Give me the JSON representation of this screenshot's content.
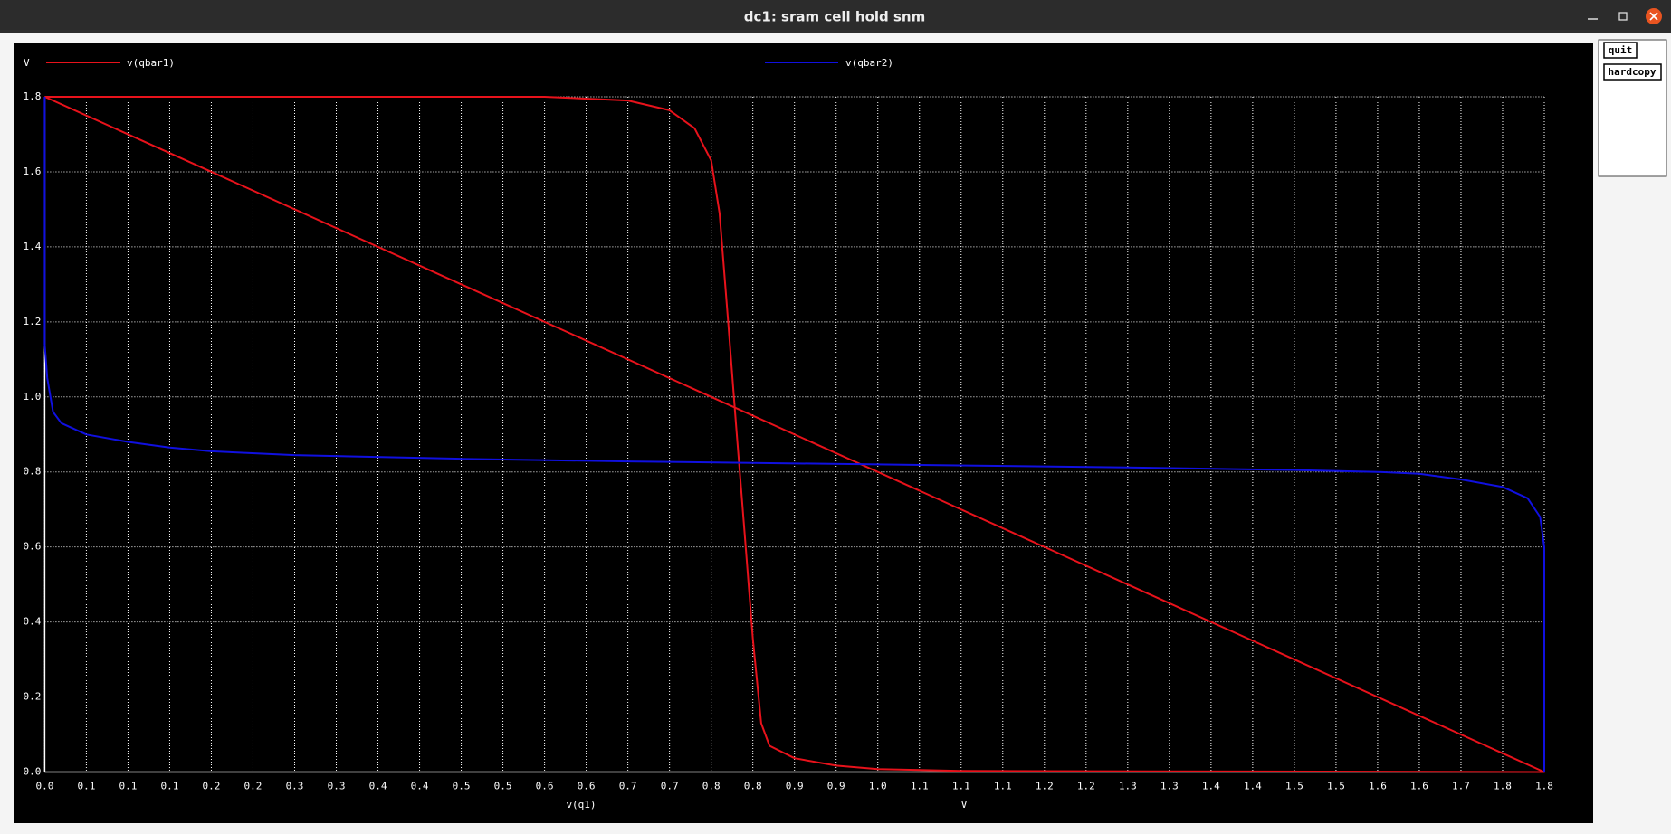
{
  "window": {
    "title": "dc1: sram cell hold snm"
  },
  "buttons": [
    "quit",
    "hardcopy"
  ],
  "chart_data": {
    "type": "line",
    "y_unit": "V",
    "xlabel": "v(q1)",
    "x_unit": "V",
    "grid": true,
    "xlim": [
      0,
      1.8
    ],
    "ylim": [
      0,
      1.8
    ],
    "xticks": [
      {
        "value": 0,
        "label": "0.0"
      },
      {
        "value": 0.05,
        "label": "0.1"
      },
      0.1,
      {
        "value": 0.15,
        "label": "0.1"
      },
      0.2,
      {
        "value": 0.25,
        "label": "0.2"
      },
      0.3,
      {
        "value": 0.35,
        "label": "0.3"
      },
      0.4,
      {
        "value": 0.45,
        "label": "0.4"
      },
      0.5,
      {
        "value": 0.55,
        "label": "0.5"
      },
      0.6,
      {
        "value": 0.65,
        "label": "0.6"
      },
      0.7,
      {
        "value": 0.75,
        "label": "0.7"
      },
      0.8,
      {
        "value": 0.85,
        "label": "0.8"
      },
      0.9,
      {
        "value": 0.95,
        "label": "0.9"
      },
      {
        "value": 1,
        "label": "1.0"
      },
      {
        "value": 1.05,
        "label": "1.1"
      },
      1.1,
      {
        "value": 1.15,
        "label": "1.1"
      },
      1.2,
      {
        "value": 1.25,
        "label": "1.2"
      },
      1.3,
      {
        "value": 1.35,
        "label": "1.3"
      },
      1.4,
      {
        "value": 1.45,
        "label": "1.4"
      },
      1.5,
      {
        "value": 1.55,
        "label": "1.5"
      },
      1.6,
      {
        "value": 1.65,
        "label": "1.6"
      },
      1.7,
      {
        "value": 1.75,
        "label": "1.8"
      },
      1.8
    ],
    "yticks": [
      {
        "value": 0,
        "label": "0.0"
      },
      0.2,
      0.4,
      0.6,
      0.8,
      {
        "value": 1,
        "label": "1.0"
      },
      1.2,
      1.4,
      1.6,
      1.8
    ],
    "series": [
      {
        "name": "v(qbar1)",
        "color": "#e8121b",
        "x": [
          0,
          0.5,
          0.6,
          0.7,
          0.75,
          0.78,
          0.8,
          0.81,
          0.82,
          0.83,
          0.84,
          0.85,
          0.86,
          0.87,
          0.9,
          0.95,
          1.0,
          1.1,
          1.8,
          0
        ],
        "values": [
          1.8,
          1.8,
          1.8,
          1.79,
          1.764,
          1.716,
          1.63,
          1.49,
          1.21,
          0.92,
          0.64,
          0.355,
          0.13,
          0.07,
          0.037,
          0.017,
          0.008,
          0.003,
          0,
          1.8
        ]
      },
      {
        "name": "v(qbar2)",
        "color": "#1010e0",
        "x": [
          0,
          0,
          0.003,
          0.01,
          0.02,
          0.05,
          0.1,
          0.15,
          0.2,
          0.3,
          0.5,
          0.7,
          1.0,
          1.3,
          1.5,
          1.6,
          1.65,
          1.7,
          1.75,
          1.78,
          1.795,
          1.8,
          1.8
        ],
        "values": [
          1.8,
          1.14,
          1.05,
          0.96,
          0.93,
          0.9,
          0.88,
          0.865,
          0.855,
          0.845,
          0.835,
          0.828,
          0.82,
          0.812,
          0.805,
          0.8,
          0.795,
          0.78,
          0.76,
          0.73,
          0.68,
          0.6,
          0
        ]
      }
    ]
  }
}
